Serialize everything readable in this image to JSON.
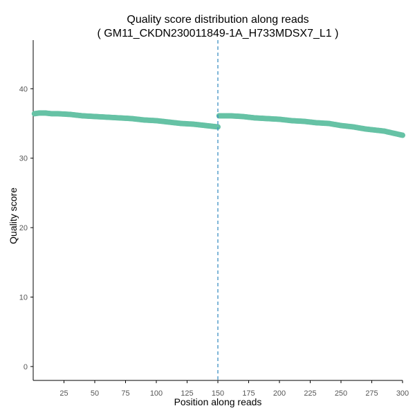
{
  "chart_data": {
    "type": "scatter",
    "title": "Quality score distribution along reads",
    "subtitle": "( GM11_CKDN230011849-1A_H733MDSX7_L1 )",
    "xlabel": "Position along reads",
    "ylabel": "Quality score",
    "xlim": [
      0,
      300
    ],
    "ylim": [
      -2,
      47
    ],
    "x_ticks": [
      25,
      50,
      75,
      100,
      125,
      150,
      175,
      200,
      225,
      250,
      275,
      300
    ],
    "y_ticks": [
      0,
      10,
      20,
      30,
      40
    ],
    "grid": false,
    "legend": "none",
    "vline": {
      "x": 150,
      "style": "dashed",
      "color": "#3b8fc4"
    },
    "series": [
      {
        "name": "",
        "color": "#66c2a5",
        "segments": [
          {
            "x": [
              1,
              5,
              10,
              15,
              20,
              30,
              40,
              50,
              60,
              70,
              80,
              90,
              100,
              110,
              120,
              130,
              140,
              145,
              150
            ],
            "y": [
              36.4,
              36.5,
              36.5,
              36.4,
              36.4,
              36.3,
              36.1,
              36.0,
              35.9,
              35.8,
              35.7,
              35.5,
              35.4,
              35.2,
              35.0,
              34.9,
              34.7,
              34.6,
              34.5
            ]
          },
          {
            "x": [
              151,
              155,
              160,
              170,
              180,
              190,
              200,
              210,
              220,
              230,
              240,
              250,
              260,
              270,
              280,
              285,
              290,
              295,
              300
            ],
            "y": [
              36.1,
              36.1,
              36.1,
              36.0,
              35.8,
              35.7,
              35.6,
              35.4,
              35.3,
              35.1,
              35.0,
              34.7,
              34.5,
              34.2,
              34.0,
              33.9,
              33.7,
              33.5,
              33.3
            ]
          }
        ]
      }
    ]
  }
}
